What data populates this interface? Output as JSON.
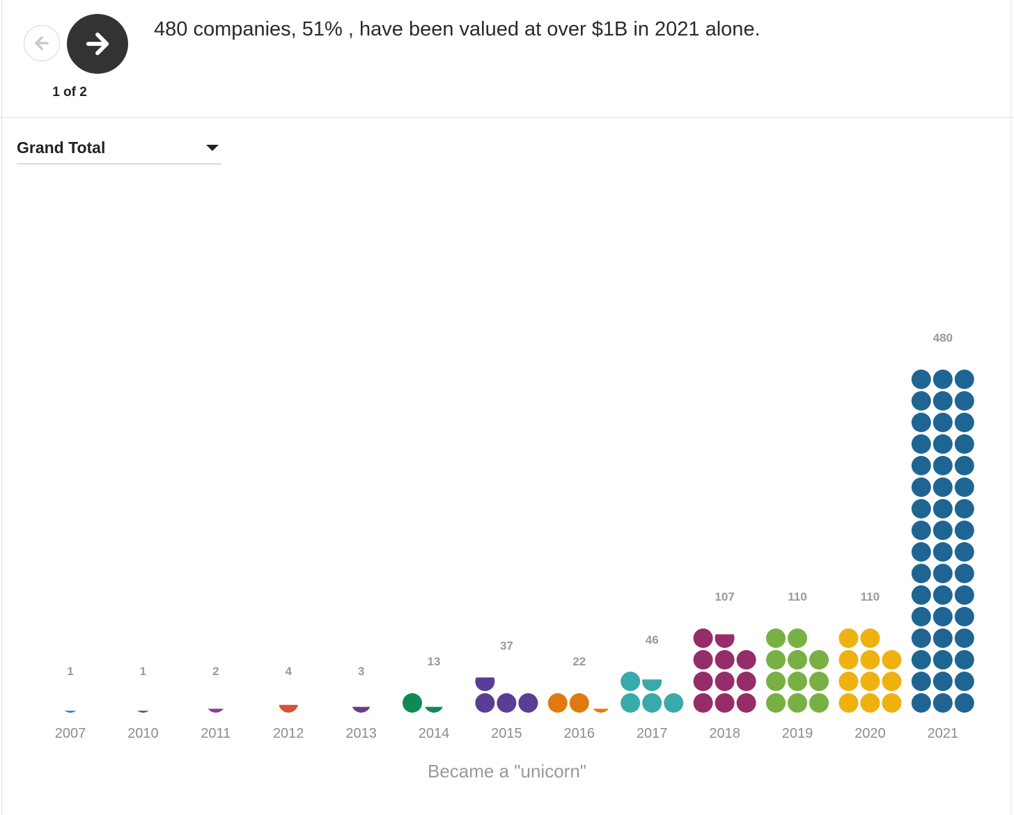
{
  "caption": "480 companies, 51% , have been valued at over $1B in 2021 alone.",
  "pager": {
    "label": "1 of 2",
    "current": 1,
    "total": 2
  },
  "nav": {
    "prev_icon": "arrow-left-icon",
    "next_icon": "arrow-right-icon"
  },
  "filter": {
    "selected": "Grand Total"
  },
  "chart_data": {
    "type": "bar",
    "style": "dot-unit stacked columns",
    "xlabel": "Became a \"unicorn\"",
    "ylabel": "",
    "categories": [
      "2007",
      "2010",
      "2011",
      "2012",
      "2013",
      "2014",
      "2015",
      "2016",
      "2017",
      "2018",
      "2019",
      "2020",
      "2021"
    ],
    "values": [
      1,
      1,
      2,
      4,
      3,
      13,
      37,
      22,
      46,
      107,
      110,
      110,
      480
    ],
    "colors": [
      "#1a80b0",
      "#44546a",
      "#8e3a8f",
      "#d4533a",
      "#6b3a85",
      "#0f8a55",
      "#5a3d94",
      "#e07a10",
      "#3aa9aa",
      "#962c68",
      "#78b043",
      "#efb110",
      "#1e6593"
    ]
  }
}
